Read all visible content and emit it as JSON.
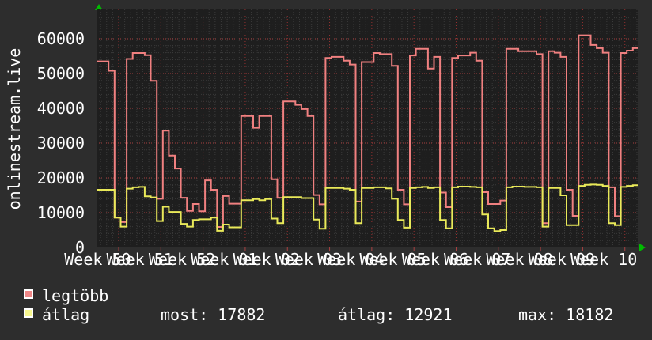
{
  "colors": {
    "bg": "#2d2d2d",
    "plot_bg": "#1e1e1e",
    "grid_minor": "#3a3a3a",
    "grid_major": "#a84040",
    "grid_week": "#963030",
    "axis": "#4a4a4a",
    "arrow": "#00bb00",
    "text": "#ffffff",
    "series_legtobb": "#f08080",
    "series_atlag": "#e9e959",
    "swatch_legtobb": "#ef8787",
    "swatch_atlag": "#f7f78f"
  },
  "y_axis": {
    "label": "onlinestream.live",
    "ticks": [
      0,
      10000,
      20000,
      30000,
      40000,
      50000,
      60000
    ]
  },
  "x_axis": {
    "labels": [
      "Week 50",
      "Week 51",
      "Week 52",
      "Week 01",
      "Week 02",
      "Week 03",
      "Week 04",
      "Week 05",
      "Week 06",
      "Week 07",
      "Week 08",
      "Week 09",
      "Week 10"
    ]
  },
  "legend": [
    {
      "label": "legtöbb",
      "color": "#ef8787"
    },
    {
      "label": "átlag",
      "color": "#f7f78f"
    }
  ],
  "stats": [
    {
      "text": "most: 17882"
    },
    {
      "text": "átlag: 12921"
    },
    {
      "text": "max: 18182"
    }
  ],
  "chart_data": {
    "type": "line",
    "step": true,
    "title": "",
    "xlabel": "",
    "ylabel": "onlinestream.live",
    "ylim": [
      0,
      68400
    ],
    "grid": true,
    "legend_position": "bottom-left",
    "x_unit": "day",
    "days_per_week": 7,
    "first_week_line_day": 3.676,
    "week_tick_labels": [
      "Week 50",
      "Week 51",
      "Week 52",
      "Week 01",
      "Week 02",
      "Week 03",
      "Week 04",
      "Week 05",
      "Week 06",
      "Week 07",
      "Week 08",
      "Week 09",
      "Week 10"
    ],
    "yticks": [
      0,
      10000,
      20000,
      30000,
      40000,
      50000,
      60000
    ],
    "series": [
      {
        "name": "legtöbb",
        "color": "#f08080",
        "values": [
          53500,
          53500,
          50800,
          8600,
          7300,
          54200,
          55900,
          55900,
          55300,
          47900,
          14000,
          33600,
          26400,
          22700,
          14300,
          10500,
          12500,
          10400,
          19300,
          16600,
          5900,
          14800,
          12600,
          12600,
          37800,
          37800,
          34400,
          37800,
          37800,
          19600,
          14300,
          42000,
          42000,
          41000,
          39800,
          37800,
          15100,
          12400,
          54500,
          54800,
          54800,
          53700,
          52600,
          13200,
          53300,
          53300,
          55900,
          55600,
          55600,
          52200,
          16600,
          12400,
          55200,
          57100,
          57100,
          51400,
          54800,
          15800,
          11600,
          54500,
          55200,
          55200,
          56000,
          53700,
          15900,
          12500,
          12500,
          13500,
          57100,
          57100,
          56400,
          56400,
          56400,
          55600,
          7000,
          56400,
          56000,
          54800,
          16600,
          9100,
          61000,
          61000,
          58200,
          57300,
          56000,
          17300,
          9000,
          55900,
          56600,
          57300
        ]
      },
      {
        "name": "átlag",
        "color": "#e9e959",
        "stats": {
          "most": 17882,
          "atlag": 12921,
          "max": 18182
        },
        "values": [
          16600,
          16600,
          16600,
          8600,
          6000,
          16900,
          17300,
          17400,
          14700,
          14400,
          7600,
          11700,
          10200,
          10200,
          6800,
          6000,
          7900,
          8100,
          8100,
          8600,
          4800,
          6600,
          5800,
          5800,
          13600,
          13600,
          13900,
          13600,
          13900,
          8300,
          7000,
          14500,
          14500,
          14500,
          14200,
          14200,
          8000,
          5400,
          17100,
          17100,
          17100,
          16900,
          16600,
          7000,
          17100,
          17100,
          17300,
          17300,
          17000,
          14000,
          7900,
          5700,
          17100,
          17300,
          17400,
          17100,
          17300,
          7900,
          5500,
          17300,
          17500,
          17500,
          17400,
          17300,
          9500,
          5500,
          4700,
          5000,
          17300,
          17500,
          17500,
          17400,
          17400,
          17300,
          6000,
          17100,
          17100,
          15000,
          6400,
          6400,
          17700,
          18000,
          18100,
          18000,
          17700,
          7000,
          6400,
          17400,
          17700,
          17882
        ]
      }
    ]
  }
}
